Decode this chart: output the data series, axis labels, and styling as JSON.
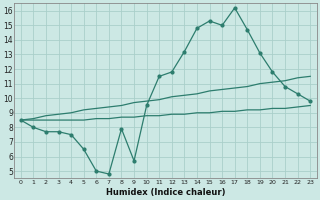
{
  "xlabel": "Humidex (Indice chaleur)",
  "x": [
    0,
    1,
    2,
    3,
    4,
    5,
    6,
    7,
    8,
    9,
    10,
    11,
    12,
    13,
    14,
    15,
    16,
    17,
    18,
    19,
    20,
    21,
    22,
    23
  ],
  "line1_y": [
    8.5,
    8.0,
    7.7,
    7.7,
    7.5,
    6.5,
    5.0,
    4.8,
    7.9,
    5.7,
    9.5,
    11.5,
    11.8,
    13.2,
    14.8,
    15.3,
    15.0,
    16.2,
    14.7,
    13.1,
    11.8,
    10.8,
    10.3,
    9.8
  ],
  "line2_y": [
    8.5,
    8.6,
    8.8,
    8.9,
    9.0,
    9.2,
    9.3,
    9.4,
    9.5,
    9.7,
    9.8,
    9.9,
    10.1,
    10.2,
    10.3,
    10.5,
    10.6,
    10.7,
    10.8,
    11.0,
    11.1,
    11.2,
    11.4,
    11.5
  ],
  "line3_y": [
    8.5,
    8.5,
    8.5,
    8.5,
    8.5,
    8.5,
    8.6,
    8.6,
    8.7,
    8.7,
    8.8,
    8.8,
    8.9,
    8.9,
    9.0,
    9.0,
    9.1,
    9.1,
    9.2,
    9.2,
    9.3,
    9.3,
    9.4,
    9.5
  ],
  "line_color": "#2d7d6e",
  "bg_color": "#cce8e4",
  "grid_color": "#aacfca",
  "ylim": [
    4.5,
    16.5
  ],
  "xlim": [
    -0.5,
    23.5
  ],
  "yticks": [
    5,
    6,
    7,
    8,
    9,
    10,
    11,
    12,
    13,
    14,
    15,
    16
  ],
  "xticks": [
    0,
    1,
    2,
    3,
    4,
    5,
    6,
    7,
    8,
    9,
    10,
    11,
    12,
    13,
    14,
    15,
    16,
    17,
    18,
    19,
    20,
    21,
    22,
    23
  ]
}
